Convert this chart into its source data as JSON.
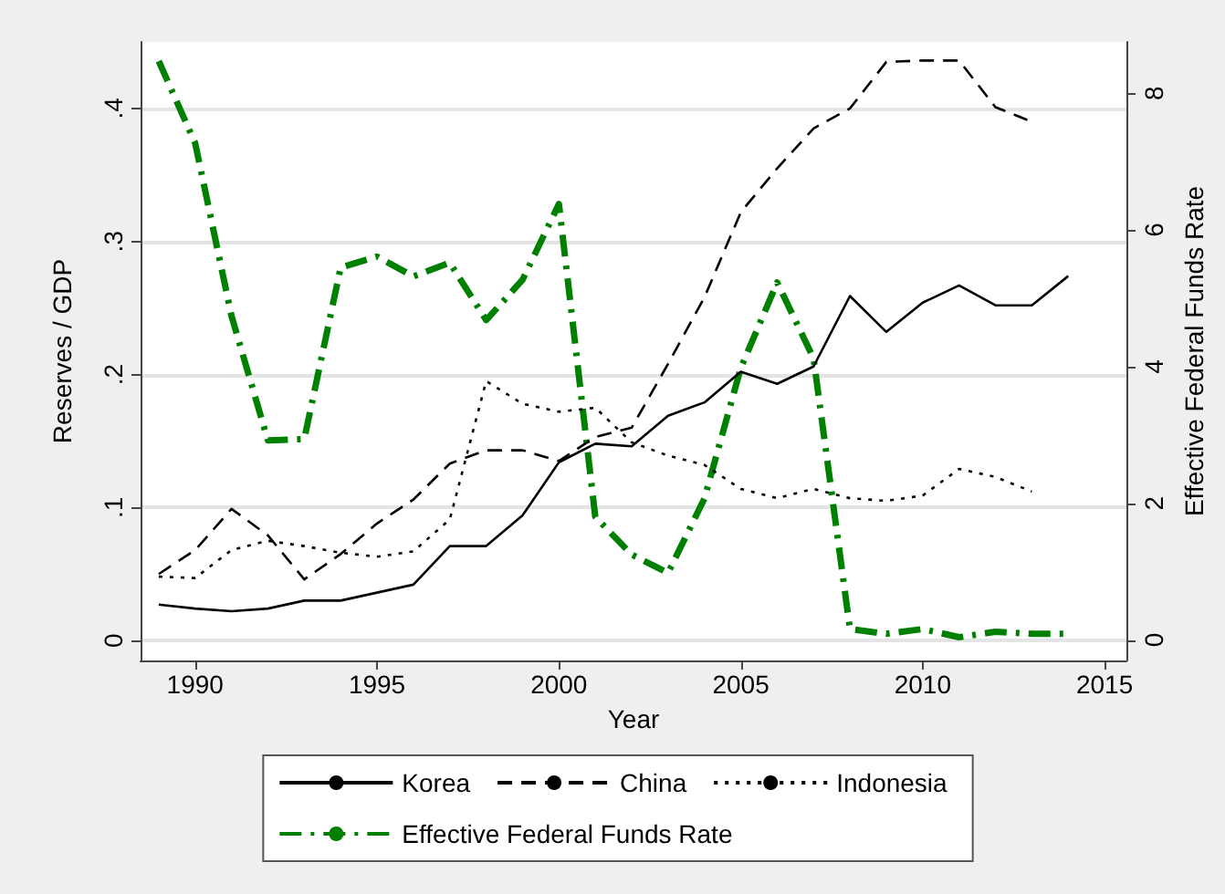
{
  "chart_data": {
    "type": "line",
    "xlabel": "Year",
    "ylabel": "Reserves / GDP",
    "y2label": "Effective Federal Funds Rate",
    "x": [
      1989,
      1990,
      1991,
      1992,
      1993,
      1994,
      1995,
      1996,
      1997,
      1998,
      1999,
      2000,
      2001,
      2002,
      2003,
      2004,
      2005,
      2006,
      2007,
      2008,
      2009,
      2010,
      2011,
      2012,
      2013,
      2014
    ],
    "series": [
      {
        "name": "Korea",
        "color": "#000000",
        "line_style": "solid",
        "values": [
          0.027,
          0.024,
          0.022,
          0.024,
          0.03,
          0.03,
          0.036,
          0.042,
          0.071,
          0.071,
          0.094,
          0.134,
          0.148,
          0.146,
          0.169,
          0.179,
          0.202,
          0.193,
          0.206,
          0.259,
          0.232,
          0.254,
          0.267,
          0.252,
          0.252,
          0.274
        ]
      },
      {
        "name": "China",
        "color": "#000000",
        "line_style": "dashed",
        "values": [
          0.05,
          0.068,
          0.099,
          0.079,
          0.046,
          0.065,
          0.088,
          0.106,
          0.133,
          0.143,
          0.143,
          0.135,
          0.153,
          0.16,
          0.208,
          0.258,
          0.322,
          0.355,
          0.385,
          0.4,
          0.435,
          0.436,
          0.436,
          0.401,
          0.39,
          null
        ]
      },
      {
        "name": "Indonesia",
        "color": "#000000",
        "line_style": "dotted",
        "values": [
          0.048,
          0.047,
          0.068,
          0.075,
          0.071,
          0.066,
          0.063,
          0.067,
          0.091,
          0.195,
          0.178,
          0.172,
          0.175,
          0.149,
          0.139,
          0.132,
          0.114,
          0.107,
          0.114,
          0.107,
          0.105,
          0.109,
          0.129,
          0.123,
          0.112,
          null
        ]
      },
      {
        "name": "Effective Federal Funds Rate",
        "color": "#008000",
        "line_style": "dashdot",
        "axis": "y2",
        "values": [
          8.47,
          7.27,
          4.74,
          2.92,
          2.94,
          5.45,
          5.61,
          5.32,
          5.52,
          4.68,
          5.27,
          6.38,
          1.8,
          1.25,
          0.98,
          2.07,
          3.98,
          5.23,
          4.12,
          0.16,
          0.09,
          0.16,
          0.04,
          0.12,
          0.09,
          0.09
        ]
      }
    ],
    "xlim": [
      1988.5,
      2015.6
    ],
    "xticks": [
      1990,
      1995,
      2000,
      2005,
      2010,
      2015
    ],
    "ylim": [
      -0.015,
      0.45
    ],
    "yticks": [
      0,
      {
        "value": 0.1,
        "label": ".1"
      },
      {
        "value": 0.2,
        "label": ".2"
      },
      {
        "value": 0.3,
        "label": ".3"
      },
      {
        "value": 0.4,
        "label": ".4"
      }
    ],
    "y2lim": [
      -0.3,
      8.75
    ],
    "y2ticks": [
      0,
      2,
      4,
      6,
      8
    ],
    "grid": "y",
    "legend": "bottom",
    "marker": "none"
  }
}
